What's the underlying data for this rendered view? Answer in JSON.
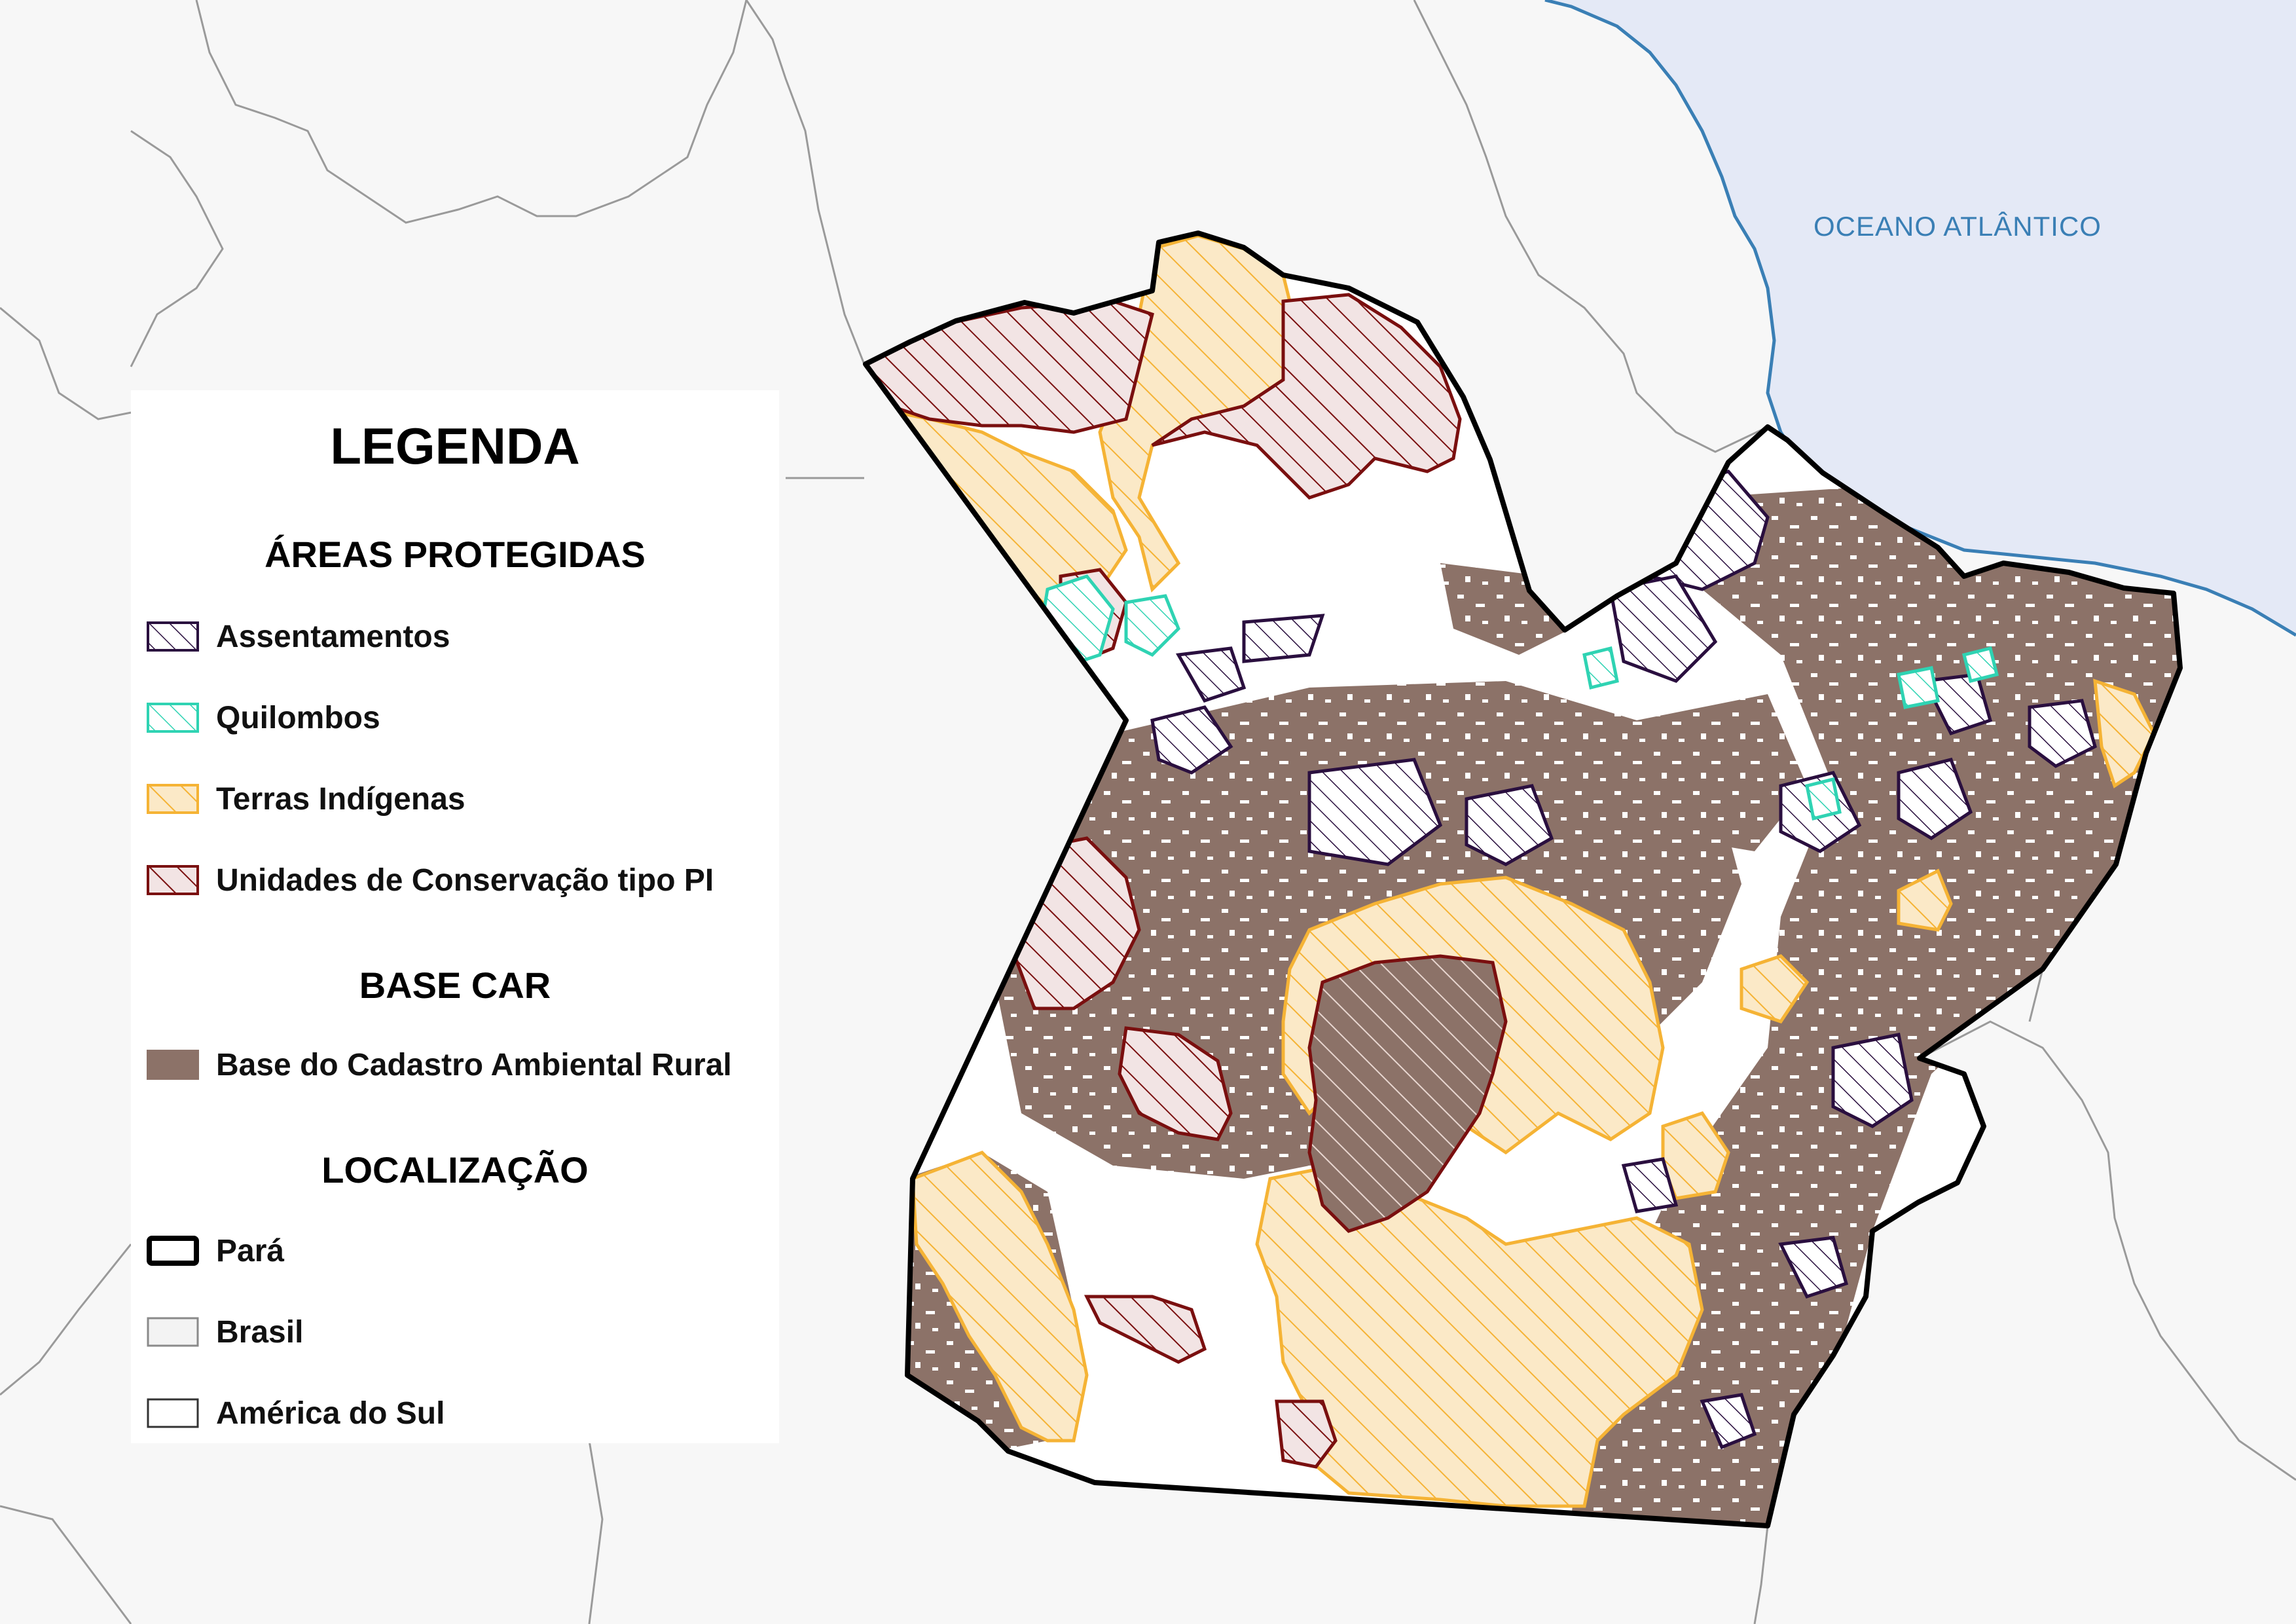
{
  "map": {
    "ocean_label": "OCEANO ATLÂNTICO",
    "colors": {
      "background": "#f7f7f7",
      "ocean": "#e4e9f6",
      "coast": "#3a7fb5",
      "assentamentos": "#2a0f3f",
      "quilombos": "#2fd3b3",
      "terras_indigenas": "#f5b335",
      "terras_indigenas_fill": "#fbe9c7",
      "ucs_pi": "#7a0f0f",
      "base_car": "#8c7268",
      "para_border": "#000000",
      "brasil_fill": "#f3f3f3"
    }
  },
  "legend": {
    "title": "LEGENDA",
    "sections": [
      {
        "heading": "ÁREAS PROTEGIDAS",
        "items": [
          {
            "label": "Assentamentos",
            "icon": "hatch-swatch-icon"
          },
          {
            "label": "Quilombos",
            "icon": "hatch-swatch-icon"
          },
          {
            "label": "Terras Indígenas",
            "icon": "hatch-swatch-icon"
          },
          {
            "label": "Unidades de Conservação tipo PI",
            "icon": "hatch-swatch-icon"
          }
        ]
      },
      {
        "heading": "BASE CAR",
        "items": [
          {
            "label": "Base do Cadastro Ambiental Rural",
            "icon": "solid-swatch-icon"
          }
        ]
      },
      {
        "heading": "LOCALIZAÇÃO",
        "items": [
          {
            "label": "Pará",
            "icon": "outline-swatch-icon"
          },
          {
            "label": "Brasil",
            "icon": "outline-swatch-icon"
          },
          {
            "label": "América do Sul",
            "icon": "outline-swatch-icon"
          }
        ]
      }
    ]
  }
}
